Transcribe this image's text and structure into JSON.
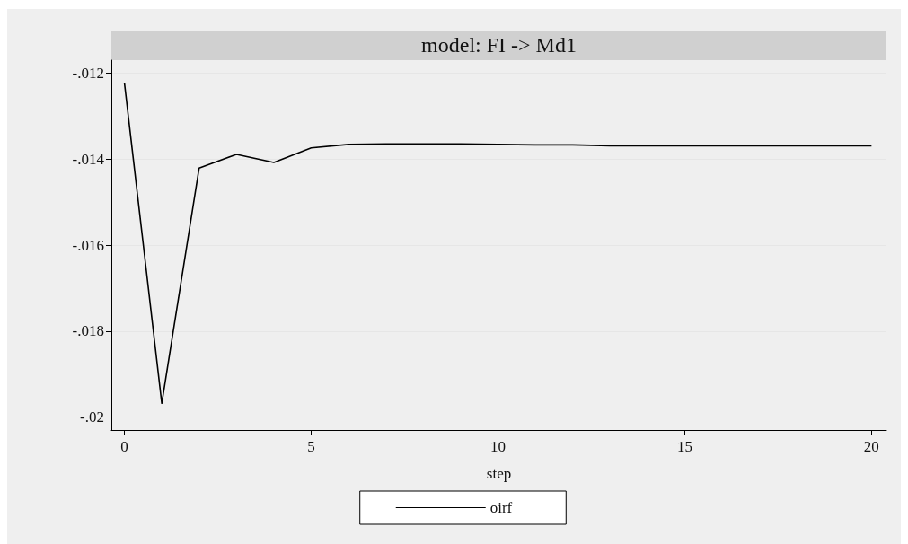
{
  "chart_data": {
    "type": "line",
    "title": "model: FI -> Md1",
    "xlabel": "step",
    "x": [
      0,
      1,
      2,
      3,
      4,
      5,
      6,
      7,
      8,
      9,
      10,
      11,
      12,
      13,
      14,
      15,
      16,
      17,
      18,
      19,
      20
    ],
    "series": [
      {
        "name": "oirf",
        "color": "#000000",
        "values": [
          -0.01223,
          -0.01968,
          -0.01421,
          -0.01389,
          -0.01408,
          -0.01374,
          -0.01366,
          -0.01365,
          -0.01365,
          -0.01365,
          -0.01366,
          -0.01367,
          -0.01367,
          -0.01369,
          -0.01369,
          -0.01369,
          -0.01369,
          -0.01369,
          -0.01369,
          -0.01369,
          -0.01369
        ]
      }
    ],
    "xlim": [
      -0.35,
      20.4
    ],
    "xticks": [
      0,
      5,
      10,
      15,
      20
    ],
    "ylim": [
      -0.0203,
      -0.0117
    ],
    "yticks": [
      {
        "value": -0.02,
        "label": "-.02"
      },
      {
        "value": -0.018,
        "label": "-.018"
      },
      {
        "value": -0.016,
        "label": "-.016"
      },
      {
        "value": -0.014,
        "label": "-.014"
      },
      {
        "value": -0.012,
        "label": "-.012"
      }
    ],
    "grid": "y",
    "legend": "bottom",
    "marker": "none",
    "line_style": "solid"
  }
}
